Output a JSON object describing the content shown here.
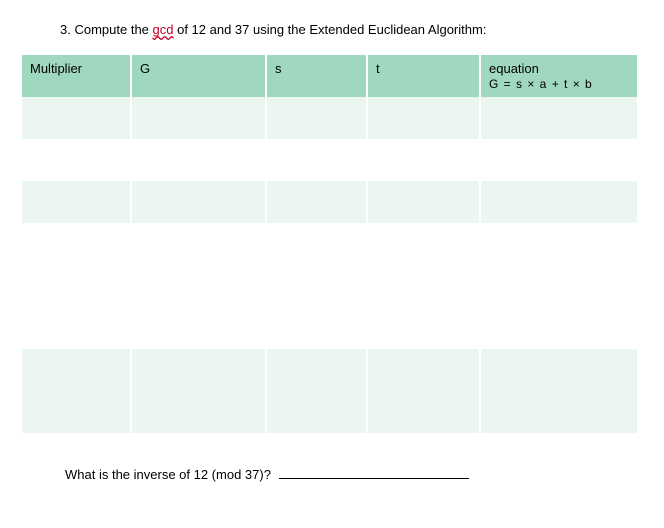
{
  "prompt": {
    "number": "3.",
    "before_gcd": "Compute the ",
    "gcd_word": "gcd",
    "after_gcd": " of  12 and 37 using the Extended Euclidean Algorithm:"
  },
  "table": {
    "header_bg": "#9fd8be",
    "tint_bg": "#ebf6f0",
    "plain_bg": "#ffffff",
    "columns": {
      "multiplier": "Multiplier",
      "g": "G",
      "s": "s",
      "t": "t",
      "equation": "equation",
      "equation_sub": "G = s × a + t × b"
    },
    "rows": [
      {
        "multiplier": "",
        "g": "",
        "s": "",
        "t": "",
        "equation": ""
      },
      {
        "multiplier": "",
        "g": "",
        "s": "",
        "t": "",
        "equation": ""
      },
      {
        "multiplier": "",
        "g": "",
        "s": "",
        "t": "",
        "equation": ""
      },
      {
        "multiplier": "",
        "g": "",
        "s": "",
        "t": "",
        "equation": ""
      },
      {
        "multiplier": "",
        "g": "",
        "s": "",
        "t": "",
        "equation": ""
      },
      {
        "multiplier": "",
        "g": "",
        "s": "",
        "t": "",
        "equation": ""
      },
      {
        "multiplier": "",
        "g": "",
        "s": "",
        "t": "",
        "equation": ""
      },
      {
        "multiplier": "",
        "g": "",
        "s": "",
        "t": "",
        "equation": ""
      }
    ],
    "row_striping": [
      "tint",
      "plain",
      "tint",
      "plain",
      "plain",
      "plain",
      "tint",
      "tint"
    ]
  },
  "question2": {
    "text": "What is the inverse of 12 (mod 37)?"
  }
}
